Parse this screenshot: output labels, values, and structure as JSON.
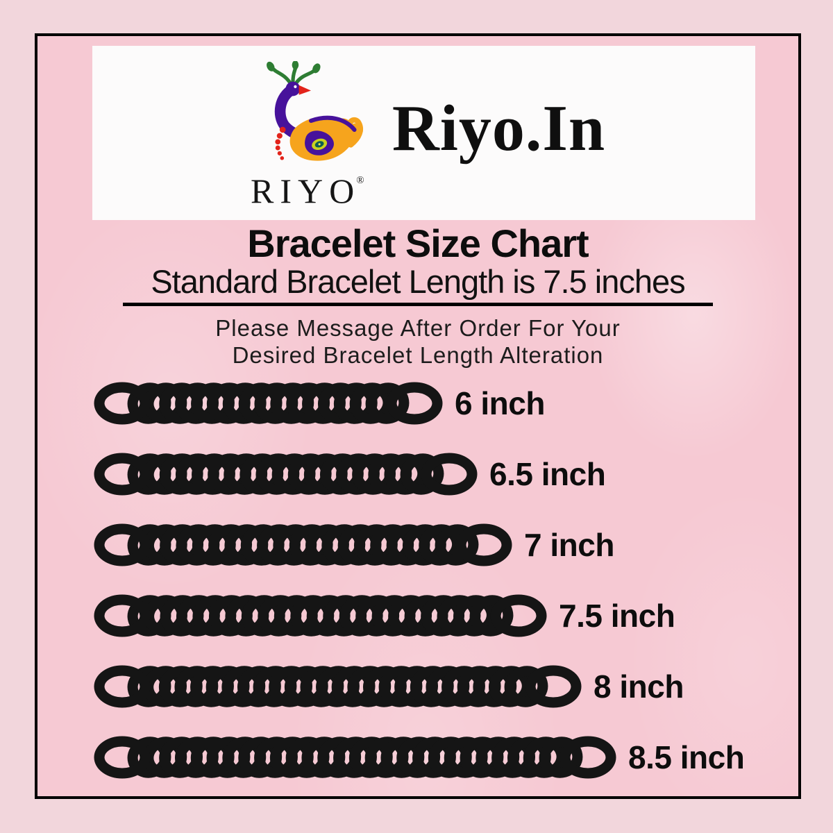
{
  "brand": {
    "logo_text": "RIYO",
    "registered_mark": "®",
    "site_name": "Riyo.In"
  },
  "heading": {
    "title": "Bracelet Size Chart",
    "subtitle": "Standard Bracelet Length is 7.5 inches",
    "note_line1": "Please Message After Order For Your",
    "note_line2": "Desired Bracelet Length Alteration"
  },
  "chart_data": {
    "type": "bar",
    "orientation": "horizontal",
    "title": "Bracelet Size Chart",
    "subtitle": "Standard Bracelet Length is 7.5 inches",
    "categories": [
      "6 inch",
      "6.5 inch",
      "7 inch",
      "7.5 inch",
      "8 inch",
      "8.5 inch"
    ],
    "values": [
      6,
      6.5,
      7,
      7.5,
      8,
      8.5
    ],
    "unit": "inches",
    "standard_length_inches": 7.5,
    "bar_style": "chain-link-graphic",
    "legend": false
  },
  "colors": {
    "outer_background": "#f2d6dc",
    "inner_background": "#f6c9d3",
    "frame_border": "#000000",
    "banner_background": "#fcfbfb",
    "chain_black": "#151515",
    "text_black": "#0d0d0d",
    "logo_purple": "#47129b",
    "logo_green": "#2e7d33",
    "logo_orange": "#f6a41d",
    "logo_red": "#e3231a",
    "logo_teal": "#0b5e53",
    "logo_yellow_green": "#c8d21f"
  }
}
